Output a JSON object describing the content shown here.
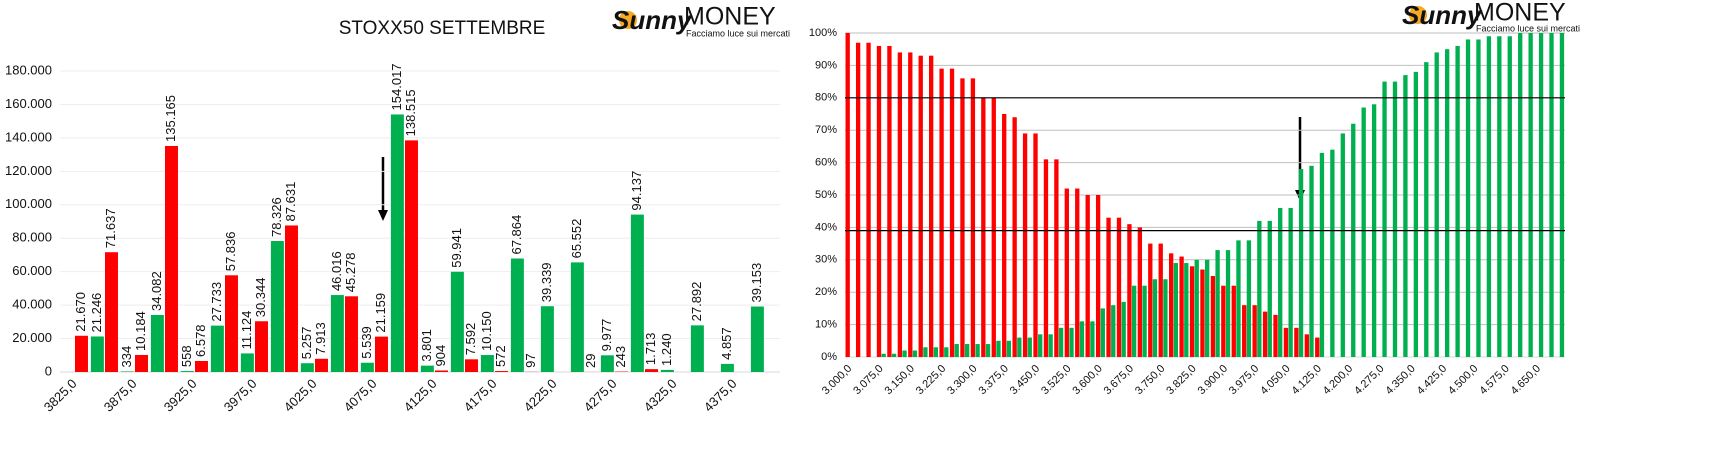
{
  "logo": {
    "brand1": "Sunny",
    "brand2": "MONEY",
    "tagline": "Facciamo luce sui mercati"
  },
  "chart_data": [
    {
      "type": "bar",
      "title": "STOXX50 SETTEMBRE",
      "categories": [
        "3825,0",
        null,
        "3875,0",
        null,
        "3925,0",
        null,
        "3975,0",
        null,
        "4025,0",
        null,
        "4075,0",
        null,
        "4125,0",
        null,
        "4175,0",
        null,
        "4225,0",
        null,
        "4275,0",
        null,
        "4325,0",
        null,
        "4375,0",
        null
      ],
      "series": [
        {
          "color": "#00b050",
          "values": [
            null,
            21246,
            334,
            34082,
            558,
            27733,
            11124,
            78326,
            5257,
            46016,
            5539,
            154017,
            3801,
            59941,
            10150,
            67864,
            39339,
            65552,
            9977,
            94137,
            1240,
            27892,
            4857,
            39153
          ],
          "value_labels": [
            null,
            "21.246",
            "334",
            "34.082",
            "558",
            "27.733",
            "11.124",
            "78.326",
            "5.257",
            "46.016",
            "5.539",
            "154.017",
            "3.801",
            "59.941",
            "10.150",
            "67.864",
            "39.339",
            "65.552",
            "9.977",
            "94.137",
            "1.240",
            "27.892",
            "4.857",
            "39.153"
          ]
        },
        {
          "color": "#ff0000",
          "values": [
            21670,
            71637,
            10184,
            135165,
            6578,
            57836,
            30344,
            87631,
            7913,
            45278,
            21159,
            138515,
            904,
            7592,
            572,
            97,
            null,
            29,
            243,
            1713,
            null,
            null,
            null,
            null
          ],
          "value_labels": [
            "21.670",
            "71.637",
            "10.184",
            "135.165",
            "6.578",
            "57.836",
            "30.344",
            "87.631",
            "7.913",
            "45.278",
            "21.159",
            "138.515",
            "904",
            "7.592",
            "572",
            "97",
            null,
            "29",
            "243",
            "1.713",
            null,
            null,
            null,
            null
          ]
        }
      ],
      "ylim": [
        0,
        180000
      ],
      "yticks": [
        0,
        {
          "value": 20000,
          "label": "20.000"
        },
        {
          "value": 40000,
          "label": "40.000"
        },
        {
          "value": 60000,
          "label": "60.000"
        },
        {
          "value": 80000,
          "label": "80.000"
        },
        {
          "value": 100000,
          "label": "100.000"
        },
        {
          "value": 120000,
          "label": "120.000"
        },
        {
          "value": 140000,
          "label": "140.000"
        },
        {
          "value": 160000,
          "label": "160.000"
        },
        {
          "value": 180000,
          "label": "180.000"
        }
      ],
      "grid": true
    },
    {
      "type": "bar",
      "categories": [
        "3.000,0",
        null,
        null,
        "3.075,0",
        null,
        null,
        "3.150,0",
        null,
        null,
        "3.225,0",
        null,
        null,
        "3.300,0",
        null,
        null,
        "3.375,0",
        null,
        null,
        "3.450,0",
        null,
        null,
        "3.525,0",
        null,
        null,
        "3.600,0",
        null,
        null,
        "3.675,0",
        null,
        null,
        "3.750,0",
        null,
        null,
        "3.825,0",
        null,
        null,
        "3.900,0",
        null,
        null,
        "3.975,0",
        null,
        null,
        "4.050,0",
        null,
        null,
        "4.125,0",
        null,
        null,
        "4.200,0",
        null,
        null,
        "4.275,0",
        null,
        null,
        "4.350,0",
        null,
        null,
        "4.425,0",
        null,
        null,
        "4.500,0",
        null,
        null,
        "4.575,0",
        null,
        null,
        "4.650,0",
        null,
        null
      ],
      "series": [
        {
          "color": "#ff0000",
          "values": [
            100,
            97,
            97,
            96,
            96,
            94,
            94,
            93,
            93,
            89,
            89,
            86,
            86,
            80,
            80,
            75,
            74,
            69,
            69,
            61,
            61,
            52,
            52,
            50,
            50,
            43,
            43,
            41,
            40,
            35,
            35,
            32,
            31,
            28,
            27,
            25,
            22,
            22,
            16,
            16,
            14,
            13,
            9,
            9,
            7,
            6,
            0,
            0,
            0,
            0,
            0,
            0,
            0,
            0,
            0,
            0,
            0,
            0,
            0,
            0,
            0,
            0,
            0,
            0,
            0,
            0,
            0,
            0,
            0
          ]
        },
        {
          "color": "#00b050",
          "values": [
            0,
            0,
            0,
            1,
            1,
            2,
            2,
            3,
            3,
            3,
            4,
            4,
            4,
            4,
            5,
            5,
            6,
            6,
            7,
            7,
            9,
            9,
            11,
            11,
            15,
            16,
            17,
            22,
            22,
            24,
            24,
            29,
            29,
            30,
            30,
            33,
            33,
            36,
            36,
            42,
            42,
            46,
            46,
            58,
            59,
            63,
            64,
            69,
            72,
            77,
            78,
            85,
            85,
            87,
            88,
            91,
            94,
            95,
            96,
            98,
            98,
            99,
            99,
            99,
            100,
            100,
            100,
            100,
            100
          ]
        }
      ],
      "ylim": [
        0,
        100
      ],
      "yticks": [
        {
          "value": 0,
          "label": "0%"
        },
        {
          "value": 10,
          "label": "10%"
        },
        {
          "value": 20,
          "label": "20%"
        },
        {
          "value": 30,
          "label": "30%"
        },
        {
          "value": 40,
          "label": "40%"
        },
        {
          "value": 50,
          "label": "50%"
        },
        {
          "value": 60,
          "label": "60%"
        },
        {
          "value": 70,
          "label": "70%"
        },
        {
          "value": 80,
          "label": "80%"
        },
        {
          "value": 90,
          "label": "90%"
        },
        {
          "value": 100,
          "label": "100%"
        }
      ],
      "reference_lines": [
        80,
        39
      ],
      "grid": true
    }
  ]
}
